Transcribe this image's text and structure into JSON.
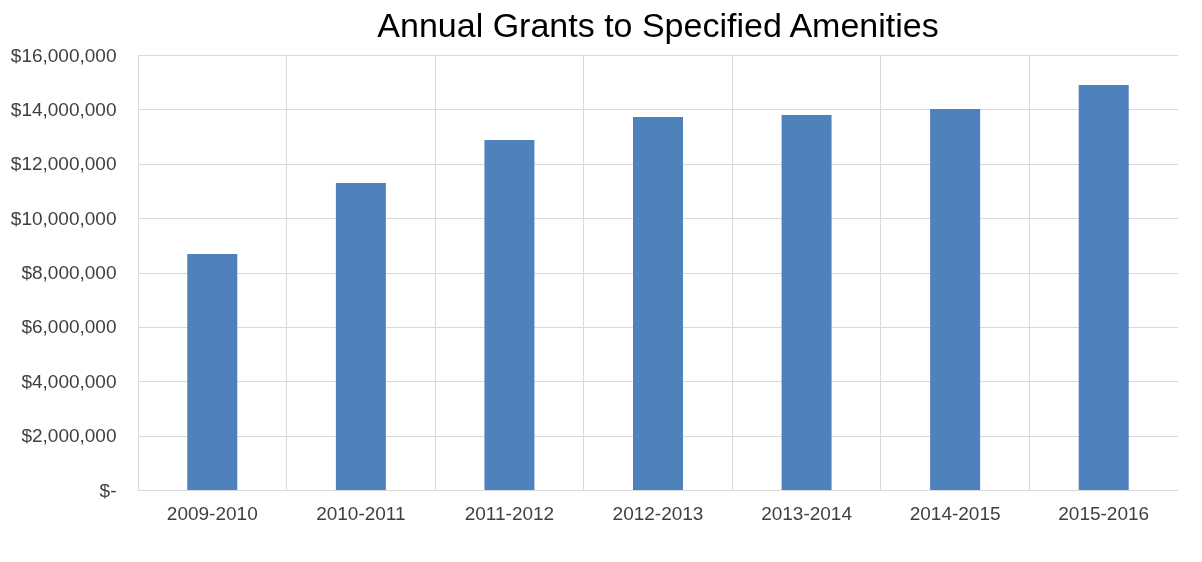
{
  "chart_data": {
    "type": "bar",
    "title": "Annual Grants to Specified Amenities",
    "categories": [
      "2009-2010",
      "2010-2011",
      "2011-2012",
      "2012-2013",
      "2013-2014",
      "2014-2015",
      "2015-2016"
    ],
    "values": [
      8680000,
      11290000,
      12870000,
      13720000,
      13790000,
      14010000,
      14900000
    ],
    "color": "#4f81bd",
    "ylim": [
      0,
      16000000
    ],
    "yticks": [
      {
        "value": 0,
        "label": "$-"
      },
      {
        "value": 2000000,
        "label": "$2,000,000"
      },
      {
        "value": 4000000,
        "label": "$4,000,000"
      },
      {
        "value": 6000000,
        "label": "$6,000,000"
      },
      {
        "value": 8000000,
        "label": "$8,000,000"
      },
      {
        "value": 10000000,
        "label": "$10,000,000"
      },
      {
        "value": 12000000,
        "label": "$12,000,000"
      },
      {
        "value": 14000000,
        "label": "$14,000,000"
      },
      {
        "value": 16000000,
        "label": "$16,000,000"
      }
    ],
    "grid": true
  }
}
